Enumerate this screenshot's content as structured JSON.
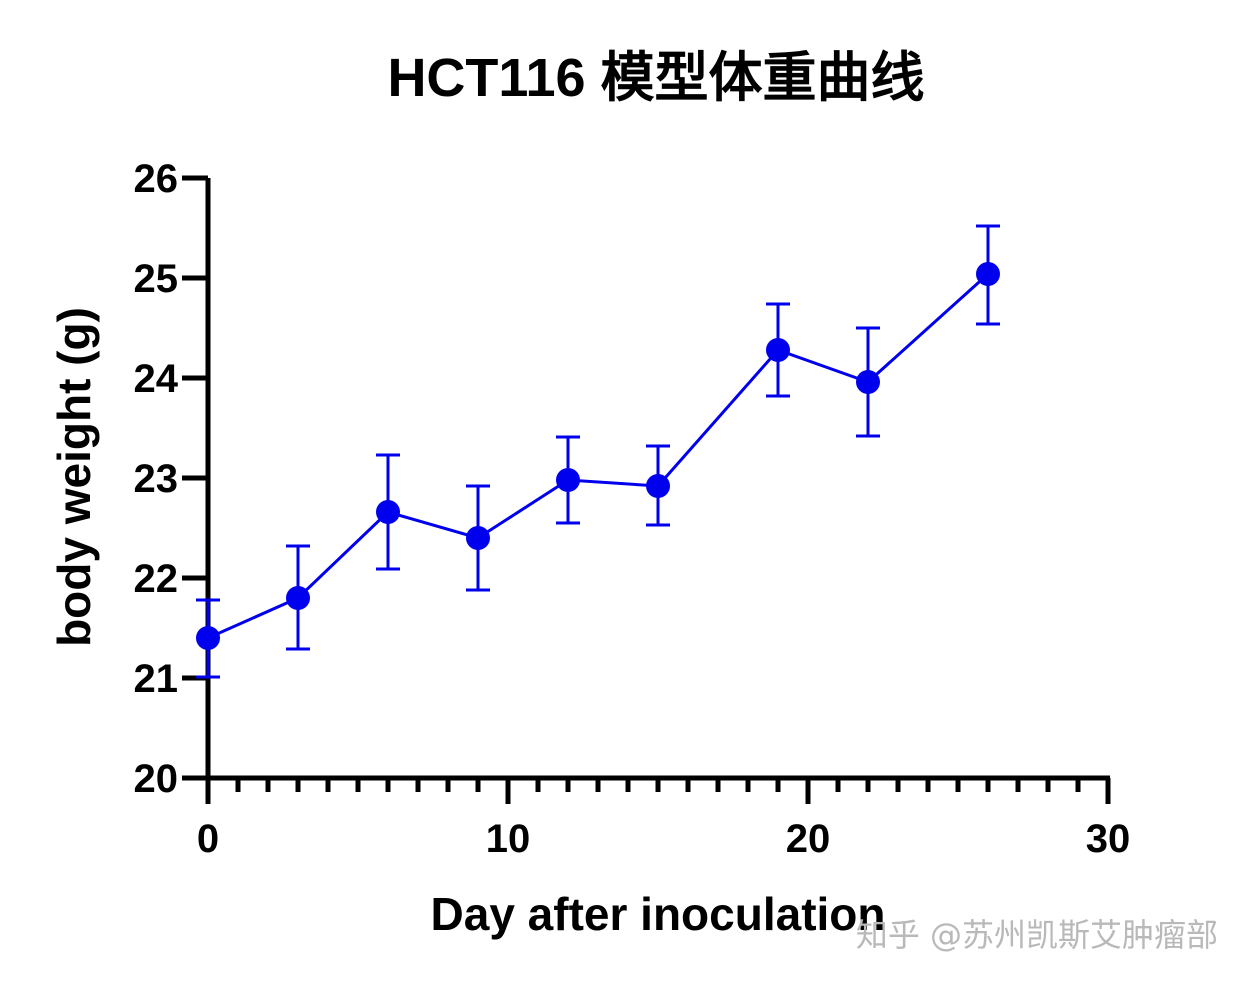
{
  "chart_data": {
    "type": "line",
    "title": "HCT116 模型体重曲线",
    "xlabel": "Day after inoculation",
    "ylabel": "body weight (g)",
    "xlim": [
      0,
      30
    ],
    "ylim": [
      20,
      26
    ],
    "x_ticks": [
      0,
      10,
      20,
      30
    ],
    "x_minor_step": 1,
    "y_ticks": [
      20,
      21,
      22,
      23,
      24,
      25,
      26
    ],
    "grid": false,
    "legend": "none",
    "series": [
      {
        "color": "#0000ee",
        "marker": "circle",
        "x": [
          0,
          3,
          6,
          9,
          12,
          15,
          19,
          22,
          26
        ],
        "y": [
          21.4,
          21.8,
          22.66,
          22.4,
          22.98,
          22.92,
          24.28,
          23.96,
          25.04
        ],
        "error_upper": [
          21.78,
          22.32,
          23.23,
          22.92,
          23.41,
          23.32,
          24.74,
          24.5,
          25.52
        ],
        "error_lower": [
          21.01,
          21.29,
          22.09,
          21.88,
          22.55,
          22.53,
          23.82,
          23.42,
          24.54
        ]
      }
    ]
  },
  "watermark": "知乎 @苏州凯斯艾肿瘤部"
}
